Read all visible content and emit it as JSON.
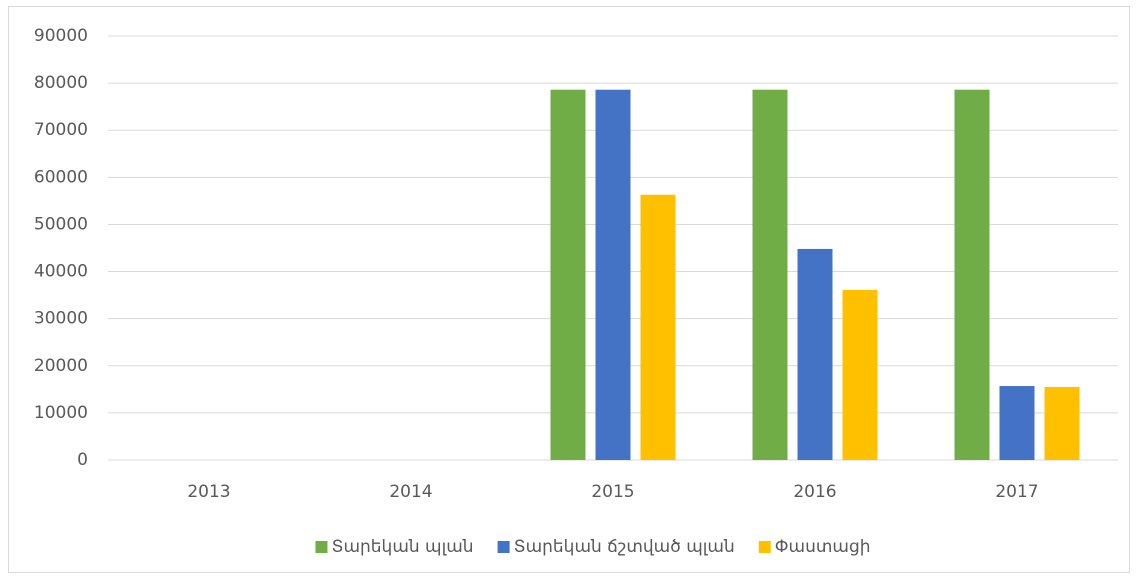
{
  "chart_data": {
    "type": "bar",
    "categories": [
      "2013",
      "2014",
      "2015",
      "2016",
      "2017"
    ],
    "series": [
      {
        "name": "Տարեկան պլան",
        "color": "#70ad47",
        "values": [
          null,
          null,
          78600,
          78600,
          78600
        ]
      },
      {
        "name": "Տարեկան ճշտված պլան",
        "color": "#4472c4",
        "values": [
          null,
          null,
          78600,
          44800,
          15700
        ]
      },
      {
        "name": "Փաստացի",
        "color": "#ffc000",
        "values": [
          null,
          null,
          56300,
          36100,
          15500
        ]
      }
    ],
    "ylim": [
      0,
      90000
    ],
    "yticks": [
      0,
      10000,
      20000,
      30000,
      40000,
      50000,
      60000,
      70000,
      80000,
      90000
    ],
    "grid": true,
    "legend": "bottom"
  }
}
